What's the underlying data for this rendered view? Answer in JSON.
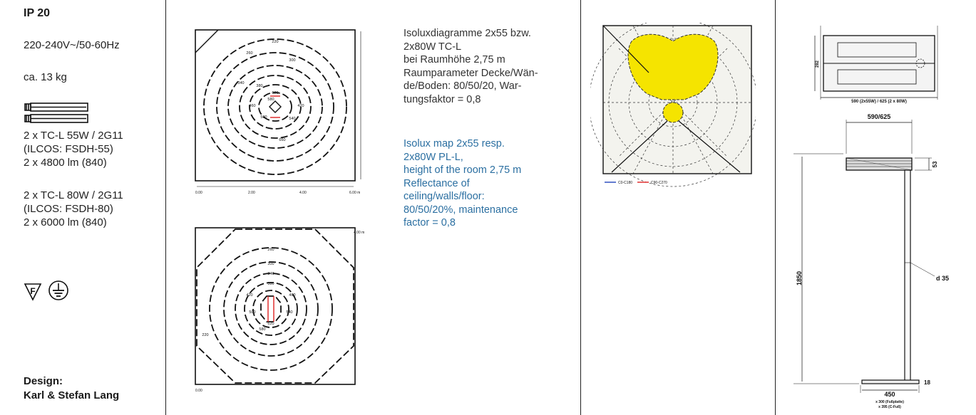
{
  "spec": {
    "ip_rating": "IP 20",
    "voltage": "220-240V~/50-60Hz",
    "weight": "ca. 13 kg",
    "lamp_set1": [
      "2 x TC-L 55W / 2G11",
      "(ILCOS: FSDH-55)",
      "2 x 4800 lm (840)"
    ],
    "lamp_set2": [
      "2 x TC-L 80W / 2G11",
      "(ILCOS: FSDH-80)",
      "2 x 6000 lm (840)"
    ],
    "symbols": [
      "f-mark-icon",
      "earth-ground-icon"
    ],
    "design_label": "Design:",
    "designer": "Karl & Stefan Lang"
  },
  "isolux": {
    "german": [
      "Isoluxdiagramme  2x55 bzw.",
      "2x80W TC-L",
      "bei Raumhöhe 2,75 m",
      "Raumparameter Decke/Wän-",
      "de/Boden: 80/50/20, War-",
      "tungsfaktor = 0,8"
    ],
    "english": [
      "Isolux map 2x55 resp.",
      "2x80W PL-L,",
      "height of the room 2,75 m",
      "Reflectance of",
      "ceiling/walls/floor:",
      "80/50/20%, maintenance",
      "factor = 0,8"
    ],
    "english_color": "#2b6fa1",
    "map1_labels": [
      "220",
      "260",
      "300",
      "340",
      "380",
      "420",
      "460",
      "500",
      "540",
      "580",
      "620",
      "660"
    ],
    "map2_labels": [
      "220",
      "260",
      "300",
      "340",
      "380",
      "420",
      "460",
      "500",
      "540",
      "580",
      "620"
    ],
    "map1_axis": [
      "0.00",
      "2.00",
      "4.00",
      "6.00 m"
    ],
    "map2_axis": [
      "0.00",
      "4.00 m"
    ]
  },
  "polar": {
    "fill_color": "#f5e400",
    "legend": [
      "C0-C180",
      "C90-C270"
    ],
    "legend_colors": [
      "#3050c0",
      "#e03030"
    ]
  },
  "drawing": {
    "top_view_width": "590 (2x55W) / 625 (2 x 80W)",
    "top_view_depth": "282",
    "head_width": "590/625",
    "head_height": "53",
    "total_height": "1850",
    "pole_diameter": "d 35",
    "base_thickness": "18",
    "base_width": "450",
    "base_note1": "x 300 (Fußplatte)",
    "base_note2": "x 395 (C-Fuß)"
  }
}
